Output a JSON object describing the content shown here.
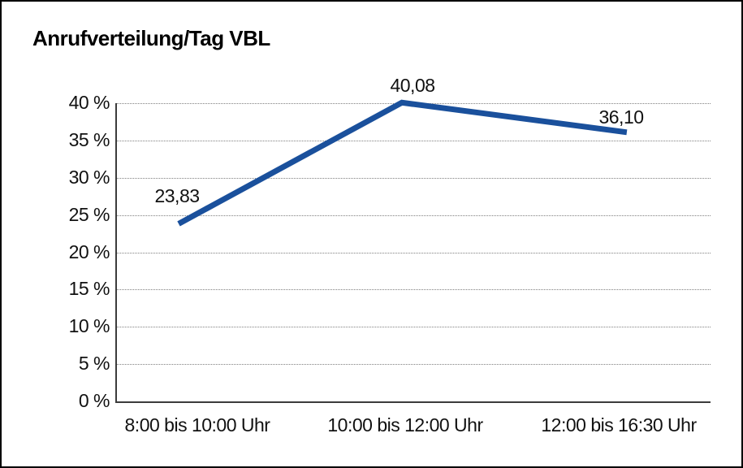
{
  "window": {
    "background_color": "#ffffff",
    "border_color": "#000000"
  },
  "chart_data": {
    "type": "line",
    "title": "Anrufverteilung/Tag VBL",
    "categories": [
      "8:00 bis 10:00 Uhr",
      "10:00 bis 12:00 Uhr",
      "12:00 bis 16:30 Uhr"
    ],
    "values": [
      23.83,
      40.08,
      36.1
    ],
    "point_labels": [
      "23,83",
      "40,08",
      "36,10"
    ],
    "xlabel": "",
    "ylabel": "",
    "ylim": [
      0,
      40
    ],
    "ytick_step": 5,
    "ytick_values": [
      0,
      5,
      10,
      15,
      20,
      25,
      30,
      35,
      40
    ],
    "ytick_labels": [
      "0 %",
      "5 %",
      "10 %",
      "15 %",
      "20 %",
      "25 %",
      "30 %",
      "35 %",
      "40 %"
    ],
    "grid": "horizontal-dotted",
    "legend_position": "none",
    "series_color": "#1A509C",
    "gridline_color": "#808080",
    "axis_color": "#3c3c3c",
    "text_color": "#111111"
  }
}
